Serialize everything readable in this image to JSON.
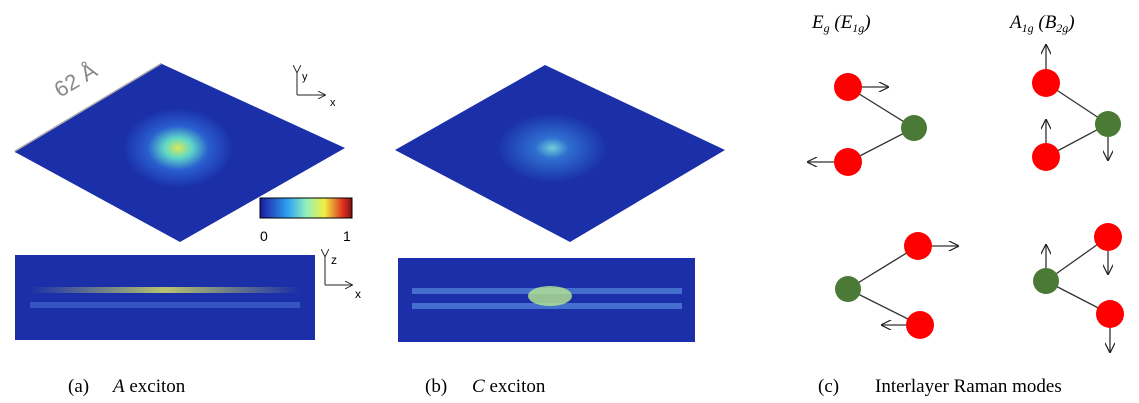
{
  "panel_a": {
    "scale_label": "62 Å",
    "top_axes": {
      "vertical": "y",
      "horizontal": "x"
    },
    "colorbar": {
      "min_label": "0",
      "max_label": "1"
    },
    "side_axes": {
      "vertical": "z",
      "horizontal": "x"
    }
  },
  "panel_b": {},
  "panel_c": {
    "mode_1": {
      "symbol": "E",
      "sub": "g",
      "alt_symbol": "E",
      "alt_sub": "1g"
    },
    "mode_2": {
      "symbol": "A",
      "sub": "1g",
      "alt_symbol": "B",
      "alt_sub": "2g"
    }
  },
  "captions": [
    {
      "label": "(a)",
      "letter": "A",
      "text": "exciton"
    },
    {
      "label": "(b)",
      "letter": "C",
      "text": "exciton"
    },
    {
      "label": "(c)",
      "text": "Interlayer Raman modes"
    }
  ]
}
